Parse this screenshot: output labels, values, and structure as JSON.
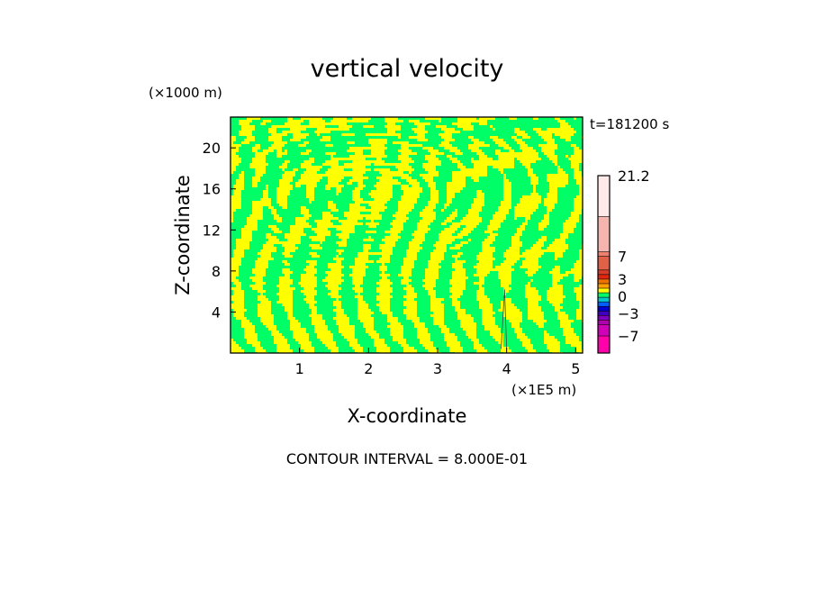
{
  "chart_data": {
    "type": "heatmap",
    "title": "vertical velocity",
    "xlabel": "X-coordinate",
    "ylabel": "Z-coordinate",
    "x_unit": "(×1E5 m)",
    "y_unit": "(×1000 m)",
    "xlim": [
      0,
      5.1
    ],
    "ylim": [
      0,
      23
    ],
    "x_ticks": [
      1,
      2,
      3,
      4,
      5
    ],
    "y_ticks": [
      4,
      8,
      12,
      16,
      20
    ],
    "time_label": "t=181200 s",
    "footer": "CONTOUR INTERVAL = 8.000E-01",
    "colorbar": {
      "labels": [
        {
          "value": 21.2,
          "text": "21.2"
        },
        {
          "value": 7,
          "text": "7"
        },
        {
          "value": 3,
          "text": "3"
        },
        {
          "value": 0,
          "text": "0"
        },
        {
          "value": -3,
          "text": "−3"
        },
        {
          "value": -7,
          "text": "−7"
        }
      ],
      "levels": [
        {
          "from": 14.0,
          "to": 21.2,
          "color": "#ffe8e8"
        },
        {
          "from": 7.8,
          "to": 14.0,
          "color": "#f5b4ae"
        },
        {
          "from": 7.0,
          "to": 7.8,
          "color": "#ee8070"
        },
        {
          "from": 4.6,
          "to": 7.0,
          "color": "#e06048"
        },
        {
          "from": 3.8,
          "to": 4.6,
          "color": "#d83c28"
        },
        {
          "from": 3.0,
          "to": 3.8,
          "color": "#e02410"
        },
        {
          "from": 2.2,
          "to": 3.0,
          "color": "#f07000"
        },
        {
          "from": 1.4,
          "to": 2.2,
          "color": "#ffa000"
        },
        {
          "from": 0.6,
          "to": 1.4,
          "color": "#ffff00"
        },
        {
          "from": -0.2,
          "to": 0.6,
          "color": "#00ff66"
        },
        {
          "from": -1.0,
          "to": -0.2,
          "color": "#00c8c8"
        },
        {
          "from": -1.8,
          "to": -1.0,
          "color": "#0060ff"
        },
        {
          "from": -2.6,
          "to": -1.8,
          "color": "#0000d0"
        },
        {
          "from": -3.4,
          "to": -2.6,
          "color": "#4000c0"
        },
        {
          "from": -4.2,
          "to": -3.4,
          "color": "#8000c0"
        },
        {
          "from": -5.0,
          "to": -4.2,
          "color": "#b000b0"
        },
        {
          "from": -7.0,
          "to": -5.0,
          "color": "#d000b8"
        },
        {
          "from": -10.0,
          "to": -7.0,
          "color": "#ff00aa"
        }
      ]
    },
    "field_colors": {
      "negative": "#00ff66",
      "positive": "#ffff00"
    }
  }
}
